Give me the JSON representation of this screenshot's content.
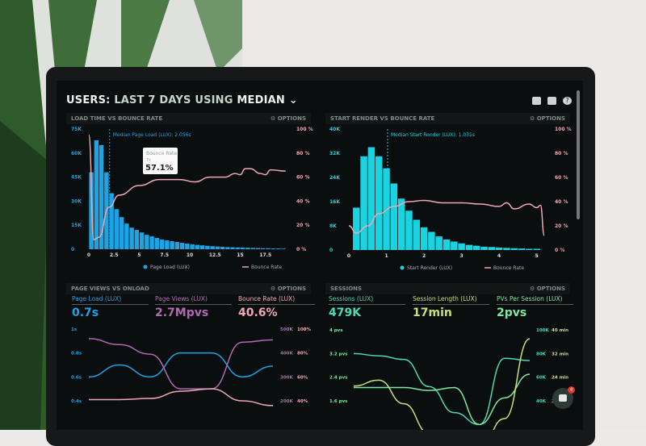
{
  "header": {
    "title_users": "USERS:",
    "title_range": "LAST 7 DAYS",
    "title_using": "USING",
    "title_median": "MEDIAN",
    "icons": [
      "monitor-icon",
      "share-icon",
      "help-icon"
    ],
    "help_glyph": "?"
  },
  "options_label": "OPTIONS",
  "colors": {
    "blue": "#1ba4e6",
    "pink": "#f0a7b4",
    "cyan": "#19d3e0",
    "purple": "#b06ab0",
    "teal": "#4fd6b2",
    "lime": "#c9e07a",
    "green": "#7ee8a2"
  },
  "chart_data": [
    {
      "type": "bar",
      "title": "LOAD TIME VS BOUNCE RATE",
      "annotation": "Median Page Load (LUX): 2.056s",
      "median": 2.056,
      "tooltip": {
        "label": "Bounce Rate",
        "sub": "7s",
        "value": "57.1%"
      },
      "xticks": [
        "0",
        "2.5",
        "5",
        "7.5",
        "10",
        "12.5",
        "15",
        "17.5"
      ],
      "xlim": [
        0,
        20
      ],
      "yticks_left": [
        "0",
        "15K",
        "30K",
        "45K",
        "60K",
        "75K"
      ],
      "ylim_left": [
        0,
        75
      ],
      "yticks_right": [
        "0 %",
        "20 %",
        "40 %",
        "60 %",
        "80 %",
        "100 %"
      ],
      "ylim_right": [
        0,
        100
      ],
      "bar_width": 0.5,
      "series": [
        {
          "name": "Page Load (LUX)",
          "type": "bar",
          "x_start": 0,
          "values": [
            48,
            68,
            65,
            48,
            35,
            25,
            20,
            16,
            13.5,
            12,
            10.5,
            9,
            8,
            7,
            6,
            5.5,
            5,
            4.5,
            4,
            3.5,
            3,
            2.7,
            2.4,
            2.1,
            1.9,
            1.7,
            1.5,
            1.3,
            1.2,
            1.1,
            1,
            0.9,
            0.8,
            0.7,
            0.6,
            0.6,
            0.5,
            0.5,
            0.4
          ]
        },
        {
          "name": "Bounce Rate",
          "type": "line",
          "points": [
            [
              0,
              95
            ],
            [
              0.5,
              8
            ],
            [
              1,
              10
            ],
            [
              2,
              35
            ],
            [
              3,
              45
            ],
            [
              5,
              53
            ],
            [
              7,
              58
            ],
            [
              9,
              58
            ],
            [
              10.5,
              56
            ],
            [
              12,
              60
            ],
            [
              13.5,
              60
            ],
            [
              14.5,
              63
            ],
            [
              15,
              62
            ],
            [
              15.5,
              67
            ],
            [
              16,
              67
            ],
            [
              17,
              63
            ],
            [
              17.5,
              62
            ],
            [
              18,
              66
            ],
            [
              19.5,
              65
            ]
          ]
        }
      ]
    },
    {
      "type": "bar",
      "title": "START RENDER VS BOUNCE RATE",
      "annotation": "Median Start Render (LUX): 1.031s",
      "median": 1.031,
      "xticks": [
        "0",
        "1",
        "2",
        "3",
        "4",
        "5"
      ],
      "xlim": [
        0,
        5.2
      ],
      "yticks_left": [
        "0",
        "8K",
        "16K",
        "24K",
        "32K",
        "40K"
      ],
      "ylim_left": [
        0,
        40
      ],
      "yticks_right": [
        "0 %",
        "20 %",
        "40 %",
        "60 %",
        "80 %",
        "100 %"
      ],
      "ylim_right": [
        0,
        100
      ],
      "bar_width": 0.2,
      "series": [
        {
          "name": "Start Render (LUX)",
          "type": "bar",
          "x_start": 0.1,
          "values": [
            14,
            31,
            34,
            31,
            27,
            22,
            17,
            13,
            10,
            7.5,
            6,
            4.5,
            3.5,
            2.8,
            2.2,
            1.7,
            1.4,
            1.1,
            1,
            0.8,
            0.7,
            0.6,
            0.5,
            0.4,
            0.4
          ]
        },
        {
          "name": "Bounce Rate",
          "type": "line",
          "points": [
            [
              0,
              20
            ],
            [
              0.2,
              14
            ],
            [
              0.5,
              20
            ],
            [
              0.8,
              30
            ],
            [
              1.2,
              36
            ],
            [
              1.6,
              40
            ],
            [
              2,
              41
            ],
            [
              2.5,
              39
            ],
            [
              3,
              39
            ],
            [
              3.5,
              38
            ],
            [
              4,
              36
            ],
            [
              4.2,
              39
            ],
            [
              4.4,
              34
            ],
            [
              4.8,
              38
            ],
            [
              5,
              35
            ],
            [
              5.1,
              37
            ],
            [
              5.2,
              12
            ]
          ]
        }
      ]
    },
    {
      "type": "line",
      "title": "PAGE VIEWS VS ONLOAD",
      "stats": [
        {
          "label": "Page Load (LUX)",
          "value": "0.7s"
        },
        {
          "label": "Page Views (LUX)",
          "value": "2.7Mpvs"
        },
        {
          "label": "Bounce Rate (LUX)",
          "value": "40.6%"
        }
      ],
      "yticks_left": [
        "0.4s",
        "0.6s",
        "0.8s",
        "1s"
      ],
      "ylim_left": [
        0.4,
        1
      ],
      "yticks_right_a": [
        "200K",
        "300K",
        "400K",
        "500K"
      ],
      "yticks_right_b": [
        "40%",
        "60%",
        "80%",
        "100%"
      ],
      "series": [
        {
          "name": "Page Load (LUX)",
          "unit": "s",
          "range": [
            0.4,
            1
          ],
          "values": [
            0.6,
            0.7,
            0.6,
            0.8,
            0.8,
            0.6,
            0.69
          ]
        },
        {
          "name": "Page Views (LUX)",
          "unit": "K",
          "range": [
            200,
            500
          ],
          "values": [
            460,
            435,
            395,
            250,
            250,
            445,
            455
          ]
        },
        {
          "name": "Bounce Rate (LUX)",
          "unit": "%",
          "range": [
            40,
            100
          ],
          "values": [
            41,
            41,
            42,
            48,
            50,
            40,
            36
          ]
        }
      ]
    },
    {
      "type": "line",
      "title": "SESSIONS",
      "stats": [
        {
          "label": "Sessions (LUX)",
          "value": "479K"
        },
        {
          "label": "Session Length (LUX)",
          "value": "17min"
        },
        {
          "label": "PVs Per Session (LUX)",
          "value": "2pvs"
        }
      ],
      "yticks_left": [
        "1.6 pvs",
        "2.4 pvs",
        "3.2 pvs",
        "4 pvs"
      ],
      "ylim_left": [
        1.6,
        4
      ],
      "yticks_right_a": [
        "40K",
        "60K",
        "80K",
        "100K"
      ],
      "yticks_right_b": [
        "16 min",
        "24 min",
        "32 min",
        "40 min"
      ],
      "series": [
        {
          "name": "Sessions (LUX)",
          "unit": "K",
          "range": [
            40,
            100
          ],
          "values": [
            80,
            78,
            75,
            52,
            30,
            20,
            76,
            74
          ]
        },
        {
          "name": "PVs Per Session (LUX)",
          "unit": "pvs",
          "range": [
            1.6,
            4
          ],
          "values": [
            2.05,
            2.05,
            2.05,
            1.95,
            2.05,
            0.8,
            1.7,
            2.5
          ]
        },
        {
          "name": "Session Length (LUX)",
          "unit": "min",
          "range": [
            16,
            40
          ],
          "values": [
            21,
            23,
            15,
            5,
            0,
            0,
            10,
            37
          ]
        }
      ]
    }
  ],
  "chat": {
    "badge": "4"
  }
}
